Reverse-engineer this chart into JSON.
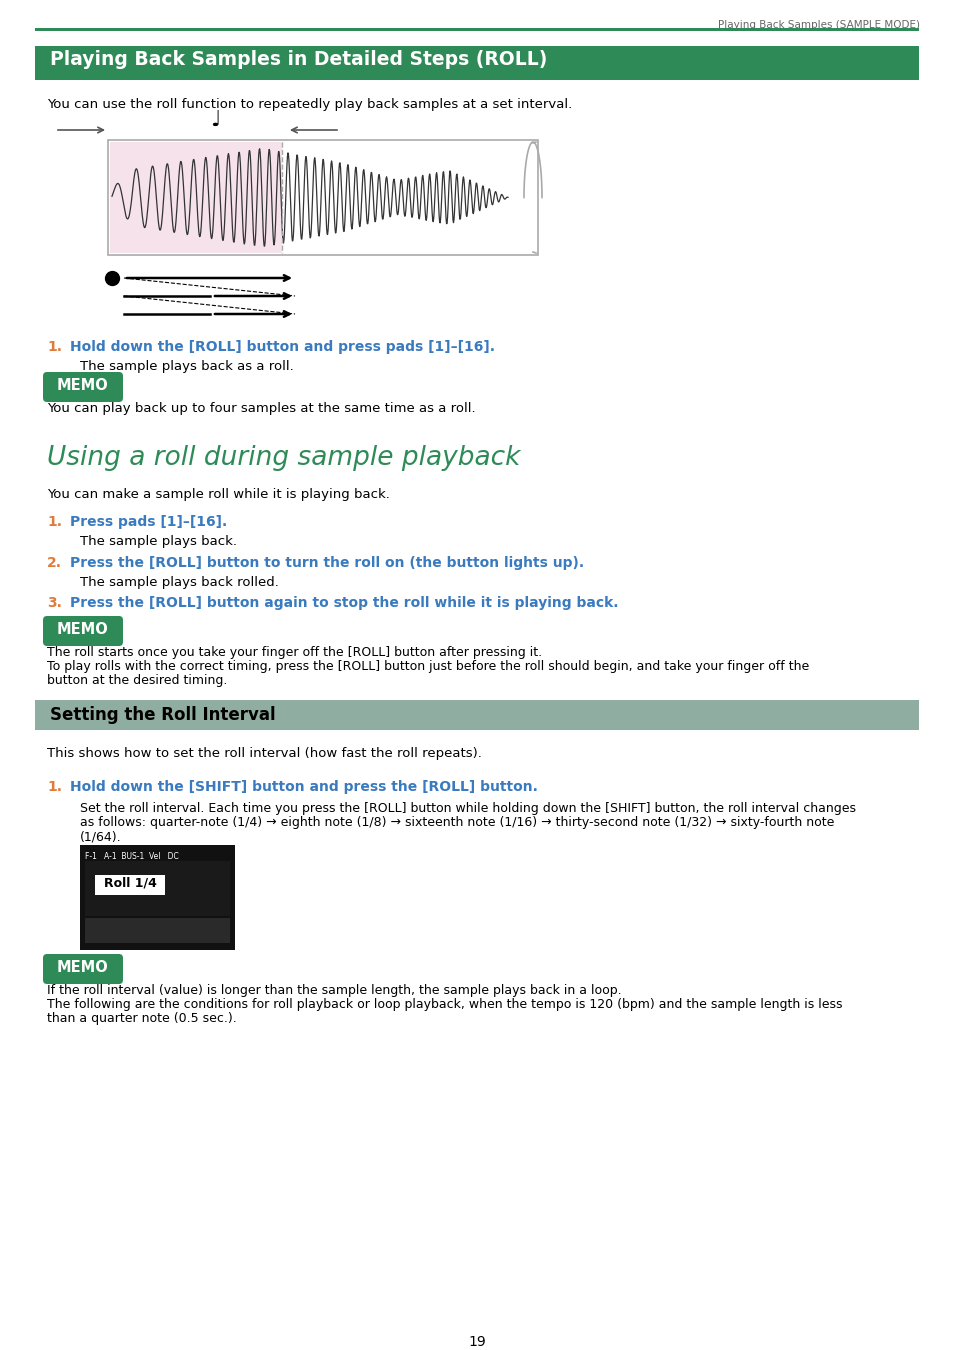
{
  "page_header_text": "Playing Back Samples (SAMPLE MODE)",
  "header_line_color": "#2e8b57",
  "section1_title": "Playing Back Samples in Detailed Steps (ROLL)",
  "section1_title_bg": "#2e8b57",
  "section1_title_color": "#ffffff",
  "intro_text1": "You can use the roll function to repeatedly play back samples at a set interval.",
  "step1_number": "1.",
  "step1_text": "Hold down the [ROLL] button and press pads [1]–[16].",
  "step1_body": "The sample plays back as a roll.",
  "memo_bg": "#2e8b57",
  "memo_text": "MEMO",
  "memo_body1": "You can play back up to four samples at the same time as a roll.",
  "section2_title": "Using a roll during sample playback",
  "section2_title_color": "#2e8b57",
  "intro_text2": "You can make a sample roll while it is playing back.",
  "s2_step1_number": "1.",
  "s2_step1_text": "Press pads [1]–[16].",
  "s2_step1_body": "The sample plays back.",
  "s2_step2_number": "2.",
  "s2_step2_text": "Press the [ROLL] button to turn the roll on (the button lights up).",
  "s2_step2_body": "The sample plays back rolled.",
  "s2_step3_number": "3.",
  "s2_step3_text": "Press the [ROLL] button again to stop the roll while it is playing back.",
  "memo2_line1": "The roll starts once you take your finger off the [ROLL] button after pressing it.",
  "memo2_line2": "To play rolls with the correct timing, press the [ROLL] button just before the roll should begin, and take your finger off the",
  "memo2_line3": "button at the desired timing.",
  "section3_title": "Setting the Roll Interval",
  "section3_title_bg": "#8fada0",
  "section3_title_color": "#000000",
  "intro_text3": "This shows how to set the roll interval (how fast the roll repeats).",
  "s3_step1_number": "1.",
  "s3_step1_text": "Hold down the [SHIFT] button and press the [ROLL] button.",
  "s3_body1": "Set the roll interval. Each time you press the [ROLL] button while holding down the [SHIFT] button, the roll interval changes",
  "s3_body2": "as follows: quarter-note (1/4) → eighth note (1/8) → sixteenth note (1/16) → thirty-second note (1/32) → sixty-fourth note",
  "s3_body3": "(1/64).",
  "memo3_line1": "If the roll interval (value) is longer than the sample length, the sample plays back in a loop.",
  "memo3_line2": "The following are the conditions for roll playback or loop playback, when the tempo is 120 (bpm) and the sample length is less",
  "memo3_line3": "than a quarter note (0.5 sec.).",
  "page_number": "19",
  "bg_color": "#ffffff",
  "text_color": "#000000",
  "step_num_color": "#e07b39",
  "step_link_color": "#3a7abf"
}
